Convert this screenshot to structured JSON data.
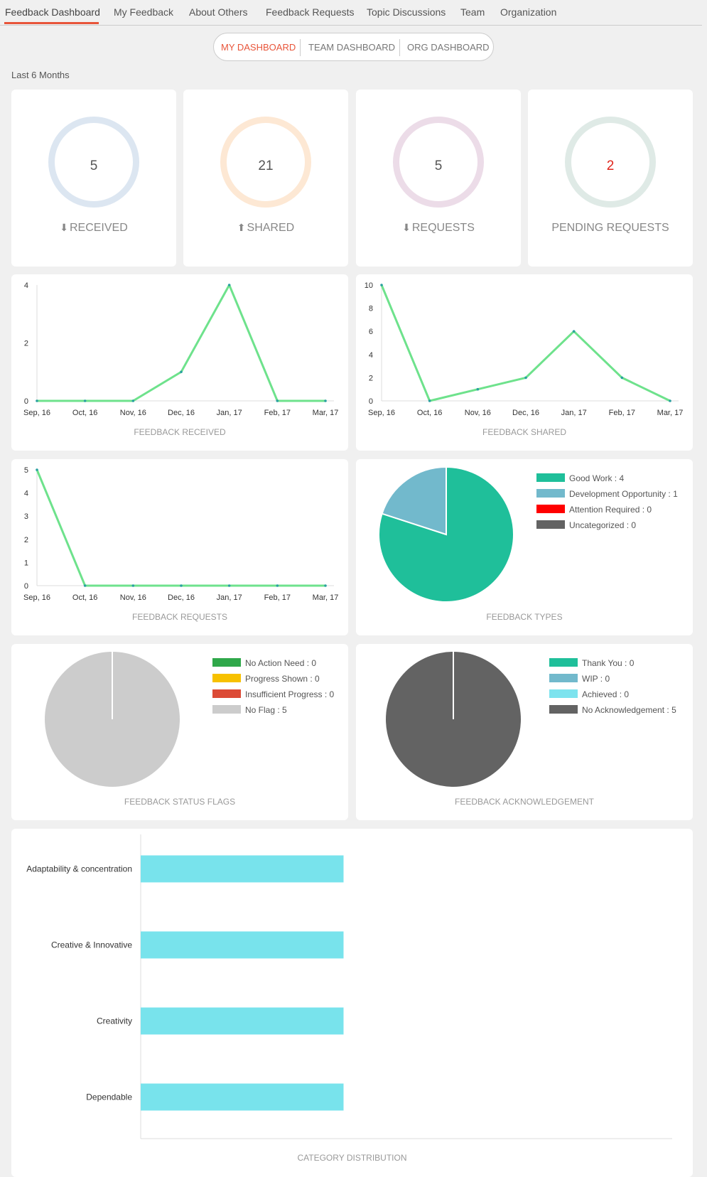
{
  "nav": {
    "tabs": [
      "Feedback Dashboard",
      "My Feedback",
      "About Others",
      "Feedback Requests",
      "Topic Discussions",
      "Team",
      "Organization"
    ],
    "active_tab": "Feedback Dashboard"
  },
  "dashboard_switch": {
    "items": [
      "MY DASHBOARD",
      "TEAM DASHBOARD",
      "ORG DASHBOARD"
    ],
    "active": "MY DASHBOARD"
  },
  "period": "Last 6 Months",
  "stats": [
    {
      "value": "5",
      "label": "RECEIVED",
      "icon": "arrow-down-icon",
      "ring_color": "#dce6f1",
      "value_color": "#555555"
    },
    {
      "value": "21",
      "label": "SHARED",
      "icon": "arrow-up-icon",
      "ring_color": "#fde8d4",
      "value_color": "#555555"
    },
    {
      "value": "5",
      "label": "REQUESTS",
      "icon": "arrow-down-icon",
      "ring_color": "#ecdce8",
      "value_color": "#555555"
    },
    {
      "value": "2",
      "label": "PENDING REQUESTS",
      "icon": "",
      "ring_color": "#dfeae6",
      "value_color": "#e0241b"
    }
  ],
  "colors": {
    "line": "#6ee28c",
    "point": "#2aa0a0",
    "axis": "#dddddd",
    "bar": "#78e3ec"
  },
  "chart_data": [
    {
      "type": "line",
      "caption": "FEEDBACK RECEIVED",
      "categories": [
        "Sep, 16",
        "Oct, 16",
        "Nov, 16",
        "Dec, 16",
        "Jan, 17",
        "Feb, 17",
        "Mar, 17"
      ],
      "values": [
        0,
        0,
        0,
        1,
        4,
        0,
        0
      ],
      "yticks": [
        0,
        2,
        4
      ],
      "ylim": [
        0,
        4
      ]
    },
    {
      "type": "line",
      "caption": "FEEDBACK SHARED",
      "categories": [
        "Sep, 16",
        "Oct, 16",
        "Nov, 16",
        "Dec, 16",
        "Jan, 17",
        "Feb, 17",
        "Mar, 17"
      ],
      "values": [
        10,
        0,
        1,
        2,
        6,
        2,
        0
      ],
      "yticks": [
        0,
        2,
        4,
        6,
        8,
        10
      ],
      "ylim": [
        0,
        10
      ]
    },
    {
      "type": "line",
      "caption": "FEEDBACK REQUESTS",
      "categories": [
        "Sep, 16",
        "Oct, 16",
        "Nov, 16",
        "Dec, 16",
        "Jan, 17",
        "Feb, 17",
        "Mar, 17"
      ],
      "values": [
        5,
        0,
        0,
        0,
        0,
        0,
        0
      ],
      "yticks": [
        0,
        1,
        2,
        3,
        4,
        5
      ],
      "ylim": [
        0,
        5
      ]
    },
    {
      "type": "pie",
      "caption": "FEEDBACK TYPES",
      "slices": [
        {
          "label": "Good Work : 4",
          "value": 4,
          "color": "#1fbf9a"
        },
        {
          "label": "Development Opportunity : 1",
          "value": 1,
          "color": "#72b9cc"
        },
        {
          "label": "Attention Required : 0",
          "value": 0,
          "color": "#ff0000"
        },
        {
          "label": "Uncategorized : 0",
          "value": 0,
          "color": "#636363"
        }
      ]
    },
    {
      "type": "pie",
      "caption": "FEEDBACK STATUS FLAGS",
      "slices": [
        {
          "label": "No Action Need : 0",
          "value": 0,
          "color": "#2fa84a"
        },
        {
          "label": "Progress Shown : 0",
          "value": 0,
          "color": "#f7c100"
        },
        {
          "label": "Insufficient Progress : 0",
          "value": 0,
          "color": "#dc4b36"
        },
        {
          "label": "No Flag : 5",
          "value": 5,
          "color": "#cccccc"
        }
      ]
    },
    {
      "type": "pie",
      "caption": "FEEDBACK ACKNOWLEDGEMENT",
      "slices": [
        {
          "label": "Thank You : 0",
          "value": 0,
          "color": "#1fbf9a"
        },
        {
          "label": "WIP : 0",
          "value": 0,
          "color": "#72b9cc"
        },
        {
          "label": "Achieved : 0",
          "value": 0,
          "color": "#7de3ee"
        },
        {
          "label": "No Acknowledgement : 5",
          "value": 5,
          "color": "#636363"
        }
      ]
    },
    {
      "type": "bar",
      "caption": "CATEGORY DISTRIBUTION",
      "categories": [
        "Adaptability & concentration",
        "Creative & Innovative",
        "Creativity",
        "Dependable"
      ],
      "values": [
        1,
        1,
        1,
        1
      ]
    }
  ]
}
